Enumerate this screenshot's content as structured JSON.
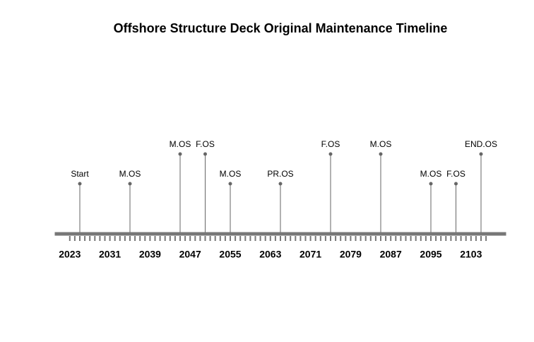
{
  "chart_data": {
    "type": "timeline",
    "title": "Offshore Structure Deck Original Maintenance Timeline",
    "events": [
      {
        "label": "Start",
        "year": 2025
      },
      {
        "label": "M.OS",
        "year": 2035
      },
      {
        "label": "M.OS",
        "year": 2045
      },
      {
        "label": "F.OS",
        "year": 2050
      },
      {
        "label": "M.OS",
        "year": 2055
      },
      {
        "label": "PR.OS",
        "year": 2065
      },
      {
        "label": "F.OS",
        "year": 2075
      },
      {
        "label": "M.OS",
        "year": 2085
      },
      {
        "label": "M.OS",
        "year": 2095
      },
      {
        "label": "F.OS",
        "year": 2100
      },
      {
        "label": "END.OS",
        "year": 2105
      }
    ],
    "xlim": [
      2020,
      2110
    ],
    "xticks": [
      2023,
      2031,
      2039,
      2047,
      2055,
      2063,
      2071,
      2079,
      2087,
      2095,
      2103
    ],
    "minor_xticks": [
      2023,
      2024,
      2025,
      2026,
      2027,
      2028,
      2029,
      2030,
      2031,
      2032,
      2033,
      2034,
      2035,
      2036,
      2037,
      2038,
      2039,
      2040,
      2041,
      2042,
      2043,
      2044,
      2045,
      2046,
      2047,
      2048,
      2049,
      2050,
      2051,
      2052,
      2053,
      2054,
      2055,
      2056,
      2057,
      2058,
      2059,
      2060,
      2061,
      2062,
      2063,
      2064,
      2065,
      2066,
      2067,
      2068,
      2069,
      2070,
      2071,
      2072,
      2073,
      2074,
      2075,
      2076,
      2077,
      2078,
      2079,
      2080,
      2081,
      2082,
      2083,
      2084,
      2085,
      2086,
      2087,
      2088,
      2089,
      2090,
      2091,
      2092,
      2093,
      2094,
      2095,
      2096,
      2097,
      2098,
      2099,
      2100,
      2101,
      2102,
      2103,
      2104,
      2105,
      2106
    ],
    "axis_color": "#777777",
    "stem_color": "#666666"
  }
}
